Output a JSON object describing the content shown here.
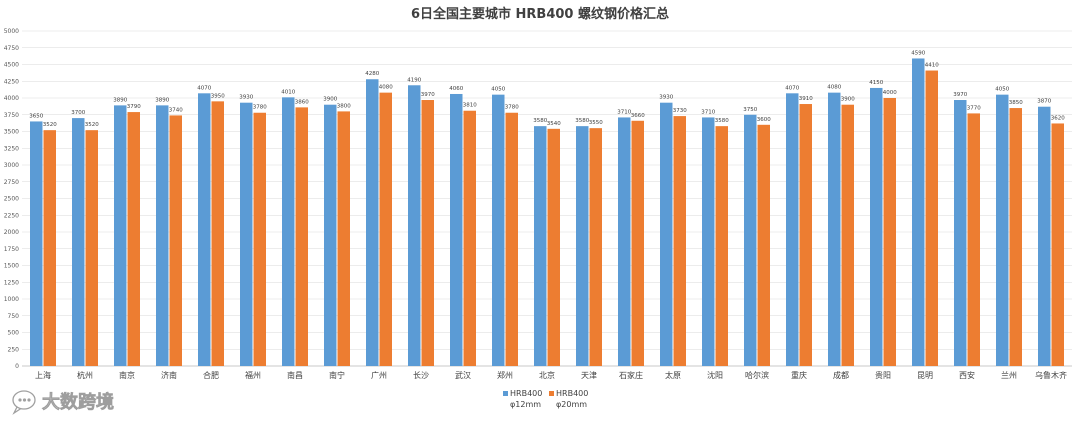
{
  "chart_data": {
    "type": "bar",
    "title": "6日全国主要城市 HRB400 螺纹钢价格汇总",
    "categories": [
      "上海",
      "杭州",
      "南京",
      "济南",
      "合肥",
      "福州",
      "南昌",
      "南宁",
      "广州",
      "长沙",
      "武汉",
      "郑州",
      "北京",
      "天津",
      "石家庄",
      "太原",
      "沈阳",
      "哈尔滨",
      "重庆",
      "成都",
      "贵阳",
      "昆明",
      "西安",
      "兰州",
      "乌鲁木齐"
    ],
    "series": [
      {
        "name": "HRB400 φ12mm",
        "legend_lines": [
          "HRB400",
          "φ12mm"
        ],
        "color": "#5B9BD5",
        "values": [
          3650,
          3700,
          3890,
          3890,
          4070,
          3930,
          4010,
          3900,
          4280,
          4190,
          4060,
          4050,
          3580,
          3580,
          3710,
          3930,
          3710,
          3750,
          4070,
          4080,
          4150,
          4590,
          3970,
          4050,
          3870
        ]
      },
      {
        "name": "HRB400 φ20mm",
        "legend_lines": [
          "HRB400",
          "φ20mm"
        ],
        "color": "#ED7D31",
        "values": [
          3520,
          3520,
          3790,
          3740,
          3950,
          3780,
          3860,
          3800,
          4080,
          3970,
          3810,
          3780,
          3540,
          3550,
          3660,
          3730,
          3580,
          3600,
          3910,
          3900,
          4000,
          4410,
          3770,
          3850,
          3620
        ]
      }
    ],
    "ylim": [
      0,
      5000
    ],
    "yticks": [
      0,
      250,
      500,
      750,
      1000,
      1250,
      1500,
      1750,
      2000,
      2250,
      2500,
      2750,
      3000,
      3250,
      3500,
      3750,
      4000,
      4250,
      4500,
      4750,
      5000
    ],
    "grid": true,
    "legend_position": "bottom"
  },
  "watermark": {
    "text": "大数跨境",
    "icon": "logo-chat-bubble-icon"
  }
}
